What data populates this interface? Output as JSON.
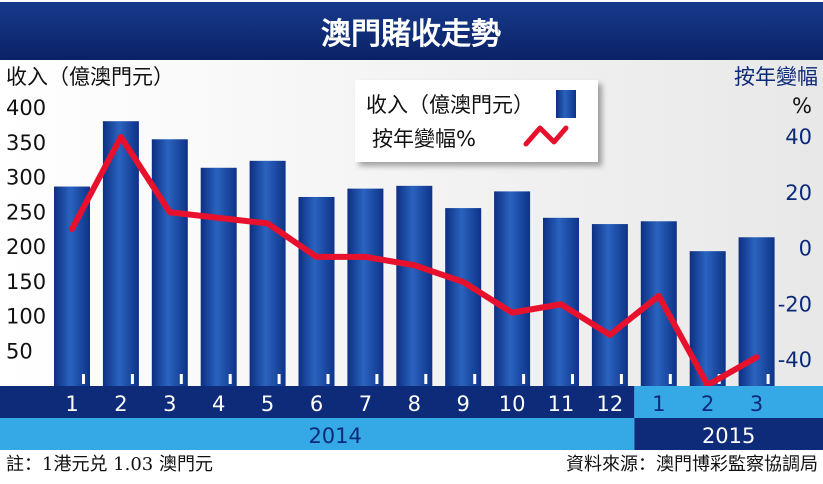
{
  "title": "澳門賭收走勢",
  "note_left": "註：1港元兑 1.03 澳門元",
  "note_right": "資料來源：澳門博彩監察協調局",
  "colors": {
    "title_bg": "#0d2b78",
    "bar": "#1a4fa3",
    "line": "#e8112d",
    "axis_band_dark": "#0d2b78",
    "axis_band_light": "#35a8e6"
  },
  "chart_data": {
    "type": "bar",
    "categories": [
      "1",
      "2",
      "3",
      "4",
      "5",
      "6",
      "7",
      "8",
      "9",
      "10",
      "11",
      "12",
      "1",
      "2",
      "3"
    ],
    "years": [
      {
        "label": "2014",
        "start": 0,
        "end": 11
      },
      {
        "label": "2015",
        "start": 12,
        "end": 14
      }
    ],
    "series": [
      {
        "name": "收入（億澳門元）",
        "type": "bar",
        "axis": "left",
        "values": [
          287,
          381,
          355,
          314,
          324,
          272,
          284,
          288,
          256,
          280,
          242,
          233,
          237,
          194,
          214
        ]
      },
      {
        "name": "按年變幅%",
        "type": "line",
        "axis": "right",
        "values": [
          7,
          40,
          13,
          11,
          9,
          -3,
          -3,
          -6,
          -12,
          -23,
          -20,
          -31,
          -17,
          -49,
          -39
        ]
      }
    ],
    "ylabel_left": "收入（億澳門元）",
    "ylabel_right": "按年變幅",
    "ylabel_right_unit": "%",
    "yticks_left": [
      50,
      100,
      150,
      200,
      250,
      300,
      350,
      400
    ],
    "yticks_right": [
      40,
      20,
      0,
      -20,
      -40
    ],
    "ylim_left": [
      0,
      400
    ],
    "ylim_right": [
      -50,
      50
    ],
    "legend_position": "top-center"
  }
}
